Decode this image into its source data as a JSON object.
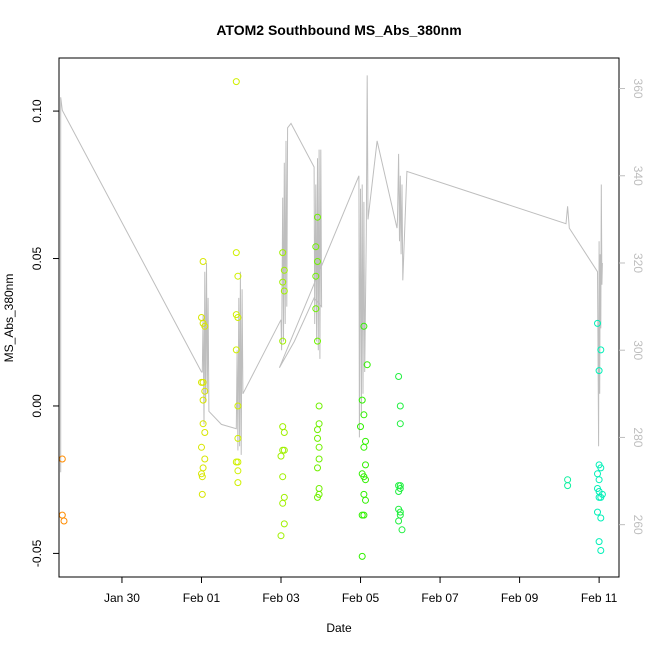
{
  "chart_data": {
    "type": "scatter",
    "title": "ATOM2 Southbound MS_Abs_380nm",
    "xlabel": "Date",
    "ylabel": "MS_Abs_380nm",
    "x_axis": {
      "type": "date",
      "range": [
        "2018-01-28T10:00",
        "2018-02-11T12:00"
      ],
      "ticks": [
        {
          "value": "2018-01-30",
          "label": "Jan 30"
        },
        {
          "value": "2018-02-01",
          "label": "Feb 01"
        },
        {
          "value": "2018-02-03",
          "label": "Feb 03"
        },
        {
          "value": "2018-02-05",
          "label": "Feb 05"
        },
        {
          "value": "2018-02-07",
          "label": "Feb 07"
        },
        {
          "value": "2018-02-09",
          "label": "Feb 09"
        },
        {
          "value": "2018-02-11",
          "label": "Feb 11"
        }
      ]
    },
    "y_left": {
      "range": [
        -0.058,
        0.118
      ],
      "ticks": [
        {
          "value": -0.05,
          "label": "-0.05"
        },
        {
          "value": 0.0,
          "label": "0.00"
        },
        {
          "value": 0.05,
          "label": "0.05"
        },
        {
          "value": 0.1,
          "label": "0.10"
        }
      ]
    },
    "y_right": {
      "range": [
        248,
        367
      ],
      "tick_color": "#bebebe",
      "ticks": [
        {
          "value": 260,
          "label": "260"
        },
        {
          "value": 280,
          "label": "280"
        },
        {
          "value": 300,
          "label": "300"
        },
        {
          "value": 320,
          "label": "320"
        },
        {
          "value": 340,
          "label": "340"
        },
        {
          "value": 360,
          "label": "360"
        }
      ]
    },
    "line_series": {
      "axis": "right",
      "color": "#bebebe",
      "points": [
        [
          "2018-01-28T11:00",
          272
        ],
        [
          "2018-01-28T11:00",
          358
        ],
        [
          "2018-01-28T12:00",
          355
        ],
        [
          "2018-02-01T00:00",
          295
        ],
        [
          "2018-02-01T00:30",
          295
        ],
        [
          "2018-02-01T01:00",
          308
        ],
        [
          "2018-02-01T01:30",
          283
        ],
        [
          "2018-02-01T02:00",
          318
        ],
        [
          "2018-02-01T02:30",
          288
        ],
        [
          "2018-02-01T03:00",
          320
        ],
        [
          "2018-02-01T03:30",
          290
        ],
        [
          "2018-02-01T04:00",
          312
        ],
        [
          "2018-02-01T04:30",
          286
        ],
        [
          "2018-02-01T12:00",
          283
        ],
        [
          "2018-02-01T21:00",
          282
        ],
        [
          "2018-02-01T21:30",
          300
        ],
        [
          "2018-02-01T22:00",
          277
        ],
        [
          "2018-02-01T22:30",
          312
        ],
        [
          "2018-02-01T23:00",
          278
        ],
        [
          "2018-02-01T23:30",
          318
        ],
        [
          "2018-02-02T00:00",
          276
        ],
        [
          "2018-02-02T00:30",
          314
        ],
        [
          "2018-02-02T01:00",
          290
        ],
        [
          "2018-02-03T00:00",
          307
        ],
        [
          "2018-02-03T00:20",
          300
        ],
        [
          "2018-02-03T01:00",
          335
        ],
        [
          "2018-02-03T01:30",
          302
        ],
        [
          "2018-02-03T02:00",
          343
        ],
        [
          "2018-02-03T02:30",
          306
        ],
        [
          "2018-02-03T03:00",
          348
        ],
        [
          "2018-02-03T03:30",
          310
        ],
        [
          "2018-02-03T04:00",
          351
        ],
        [
          "2018-02-03T06:00",
          352
        ],
        [
          "2018-02-03T20:00",
          342
        ],
        [
          "2018-02-03T20:20",
          306
        ],
        [
          "2018-02-03T21:00",
          338
        ],
        [
          "2018-02-03T21:30",
          302
        ],
        [
          "2018-02-03T22:00",
          344
        ],
        [
          "2018-02-03T22:30",
          300
        ],
        [
          "2018-02-03T23:00",
          346
        ],
        [
          "2018-02-03T23:30",
          298
        ],
        [
          "2018-02-04T00:00",
          346
        ],
        [
          "2018-02-04T00:30",
          310
        ],
        [
          "2018-02-03T20:00",
          312
        ],
        [
          "2018-02-03T08:00",
          302
        ],
        [
          "2018-02-02T23:00",
          296
        ],
        [
          "2018-02-04T23:00",
          340
        ],
        [
          "2018-02-04T23:20",
          280
        ],
        [
          "2018-02-05T00:00",
          337
        ],
        [
          "2018-02-05T00:30",
          285
        ],
        [
          "2018-02-05T01:00",
          338
        ],
        [
          "2018-02-05T01:30",
          290
        ],
        [
          "2018-02-05T02:00",
          334
        ],
        [
          "2018-02-05T02:30",
          295
        ],
        [
          "2018-02-05T03:30",
          327
        ],
        [
          "2018-02-05T04:00",
          363
        ],
        [
          "2018-02-05T04:30",
          330
        ],
        [
          "2018-02-05T10:00",
          348
        ],
        [
          "2018-02-05T22:00",
          328
        ],
        [
          "2018-02-05T22:20",
          330
        ],
        [
          "2018-02-05T23:00",
          345
        ],
        [
          "2018-02-05T23:30",
          325
        ],
        [
          "2018-02-06T00:00",
          340
        ],
        [
          "2018-02-06T00:30",
          322
        ],
        [
          "2018-02-06T01:00",
          338
        ],
        [
          "2018-02-06T01:30",
          316
        ],
        [
          "2018-02-06T04:00",
          341
        ],
        [
          "2018-02-10T04:00",
          329
        ],
        [
          "2018-02-10T05:00",
          333
        ],
        [
          "2018-02-10T06:00",
          328
        ],
        [
          "2018-02-10T23:00",
          318
        ],
        [
          "2018-02-10T23:20",
          300
        ],
        [
          "2018-02-10T23:40",
          278
        ],
        [
          "2018-02-11T00:00",
          325
        ],
        [
          "2018-02-11T00:20",
          290
        ],
        [
          "2018-02-11T00:40",
          322
        ],
        [
          "2018-02-11T01:00",
          305
        ],
        [
          "2018-02-11T01:20",
          338
        ],
        [
          "2018-02-11T01:40",
          315
        ],
        [
          "2018-02-11T02:00",
          320
        ]
      ]
    },
    "scatter_series": {
      "axis": "left",
      "groups": [
        {
          "color": "#ff8c00",
          "points": [
            [
              "2018-01-28T12:00",
              -0.018
            ],
            [
              "2018-01-28T12:00",
              -0.037
            ],
            [
              "2018-01-28T13:00",
              -0.039
            ]
          ]
        },
        {
          "color": "#d8e600",
          "points": [
            [
              "2018-02-01T00:00",
              -0.023
            ],
            [
              "2018-02-01T00:00",
              0.03
            ],
            [
              "2018-02-01T01:00",
              0.049
            ],
            [
              "2018-02-01T01:00",
              0.028
            ],
            [
              "2018-02-01T01:00",
              0.008
            ],
            [
              "2018-02-01T01:00",
              -0.006
            ],
            [
              "2018-02-01T01:00",
              -0.021
            ],
            [
              "2018-02-01T02:00",
              0.027
            ],
            [
              "2018-02-01T02:00",
              0.005
            ],
            [
              "2018-02-01T02:00",
              -0.009
            ],
            [
              "2018-02-01T02:00",
              -0.018
            ],
            [
              "2018-02-01T00:00",
              -0.014
            ],
            [
              "2018-02-01T00:00",
              0.008
            ],
            [
              "2018-02-01T01:00",
              0.002
            ],
            [
              "2018-02-01T00:30",
              -0.03
            ],
            [
              "2018-02-01T00:30",
              -0.024
            ]
          ]
        },
        {
          "color": "#d0f000",
          "points": [
            [
              "2018-02-01T21:00",
              0.11
            ],
            [
              "2018-02-01T21:00",
              0.052
            ],
            [
              "2018-02-01T22:00",
              0.044
            ],
            [
              "2018-02-01T21:00",
              0.031
            ],
            [
              "2018-02-01T22:00",
              0.03
            ],
            [
              "2018-02-01T21:00",
              0.019
            ],
            [
              "2018-02-01T22:00",
              0.0
            ],
            [
              "2018-02-01T22:00",
              -0.011
            ],
            [
              "2018-02-01T21:00",
              -0.019
            ],
            [
              "2018-02-01T22:00",
              -0.022
            ],
            [
              "2018-02-01T22:00",
              -0.026
            ],
            [
              "2018-02-01T22:00",
              -0.019
            ]
          ]
        },
        {
          "color": "#a0f000",
          "points": [
            [
              "2018-02-03T01:00",
              0.052
            ],
            [
              "2018-02-03T02:00",
              0.046
            ],
            [
              "2018-02-03T01:00",
              0.042
            ],
            [
              "2018-02-03T02:00",
              0.039
            ],
            [
              "2018-02-03T01:00",
              0.022
            ],
            [
              "2018-02-03T01:00",
              -0.007
            ],
            [
              "2018-02-03T02:00",
              -0.009
            ],
            [
              "2018-02-03T01:00",
              -0.015
            ],
            [
              "2018-02-03T02:00",
              -0.015
            ],
            [
              "2018-02-03T00:00",
              -0.017
            ],
            [
              "2018-02-03T01:00",
              -0.024
            ],
            [
              "2018-02-03T02:00",
              -0.031
            ],
            [
              "2018-02-03T01:00",
              -0.033
            ],
            [
              "2018-02-03T02:00",
              -0.04
            ],
            [
              "2018-02-03T00:00",
              -0.044
            ]
          ]
        },
        {
          "color": "#70f000",
          "points": [
            [
              "2018-02-03T22:00",
              0.064
            ],
            [
              "2018-02-03T21:00",
              0.054
            ],
            [
              "2018-02-03T22:00",
              0.049
            ],
            [
              "2018-02-03T21:00",
              0.044
            ],
            [
              "2018-02-03T21:00",
              0.033
            ],
            [
              "2018-02-03T22:00",
              0.022
            ],
            [
              "2018-02-03T23:00",
              0.0
            ],
            [
              "2018-02-03T23:00",
              -0.006
            ],
            [
              "2018-02-03T22:00",
              -0.008
            ],
            [
              "2018-02-03T23:00",
              -0.014
            ],
            [
              "2018-02-03T23:00",
              -0.018
            ],
            [
              "2018-02-03T22:00",
              -0.021
            ],
            [
              "2018-02-03T23:00",
              -0.028
            ],
            [
              "2018-02-03T22:00",
              -0.031
            ],
            [
              "2018-02-03T23:00",
              -0.03
            ],
            [
              "2018-02-03T22:00",
              -0.011
            ]
          ]
        },
        {
          "color": "#30f000",
          "points": [
            [
              "2018-02-05T02:00",
              0.027
            ],
            [
              "2018-02-05T04:00",
              0.014
            ],
            [
              "2018-02-05T01:00",
              0.002
            ],
            [
              "2018-02-05T02:00",
              -0.003
            ],
            [
              "2018-02-05T00:00",
              -0.007
            ],
            [
              "2018-02-05T03:00",
              -0.012
            ],
            [
              "2018-02-05T02:00",
              -0.014
            ],
            [
              "2018-02-05T03:00",
              -0.02
            ],
            [
              "2018-02-05T01:00",
              -0.023
            ],
            [
              "2018-02-05T02:00",
              -0.024
            ],
            [
              "2018-02-05T03:00",
              -0.025
            ],
            [
              "2018-02-05T02:00",
              -0.03
            ],
            [
              "2018-02-05T03:00",
              -0.032
            ],
            [
              "2018-02-05T01:00",
              -0.037
            ],
            [
              "2018-02-05T02:00",
              -0.037
            ],
            [
              "2018-02-05T01:00",
              -0.051
            ]
          ]
        },
        {
          "color": "#20f040",
          "points": [
            [
              "2018-02-05T23:00",
              0.01
            ],
            [
              "2018-02-06T00:00",
              0.0
            ],
            [
              "2018-02-06T00:00",
              -0.006
            ],
            [
              "2018-02-05T23:00",
              -0.027
            ],
            [
              "2018-02-06T00:00",
              -0.028
            ],
            [
              "2018-02-05T23:00",
              -0.029
            ],
            [
              "2018-02-06T00:00",
              -0.027
            ],
            [
              "2018-02-05T23:00",
              -0.035
            ],
            [
              "2018-02-06T00:00",
              -0.036
            ],
            [
              "2018-02-06T00:00",
              -0.037
            ],
            [
              "2018-02-05T23:00",
              -0.039
            ],
            [
              "2018-02-06T01:00",
              -0.042
            ]
          ]
        },
        {
          "color": "#10f0a0",
          "points": [
            [
              "2018-02-10T05:00",
              -0.025
            ],
            [
              "2018-02-10T05:00",
              -0.027
            ]
          ]
        },
        {
          "color": "#00f0b8",
          "points": [
            [
              "2018-02-10T23:00",
              0.028
            ],
            [
              "2018-02-11T01:00",
              0.019
            ],
            [
              "2018-02-11T00:00",
              0.012
            ],
            [
              "2018-02-11T00:00",
              -0.02
            ],
            [
              "2018-02-11T01:00",
              -0.021
            ],
            [
              "2018-02-10T23:00",
              -0.023
            ],
            [
              "2018-02-11T00:00",
              -0.025
            ],
            [
              "2018-02-10T23:00",
              -0.028
            ],
            [
              "2018-02-11T00:00",
              -0.029
            ],
            [
              "2018-02-11T01:00",
              -0.031
            ],
            [
              "2018-02-11T00:00",
              -0.031
            ],
            [
              "2018-02-11T02:00",
              -0.03
            ],
            [
              "2018-02-10T23:00",
              -0.036
            ],
            [
              "2018-02-11T01:00",
              -0.038
            ],
            [
              "2018-02-11T00:00",
              -0.046
            ],
            [
              "2018-02-11T01:00",
              -0.049
            ]
          ]
        }
      ]
    },
    "grid": false,
    "legend": "none"
  }
}
